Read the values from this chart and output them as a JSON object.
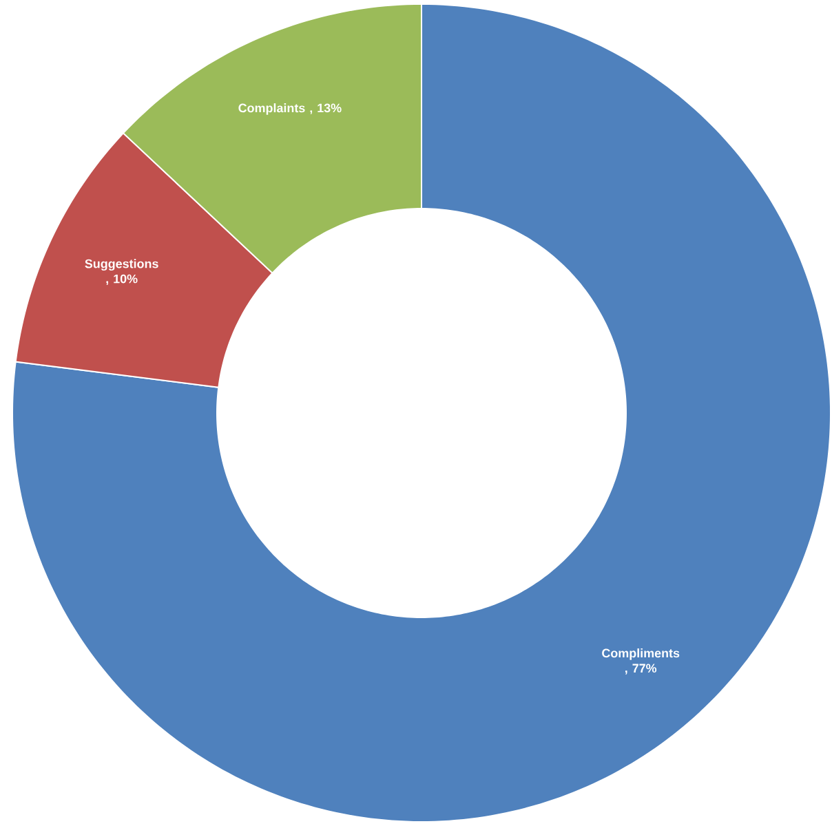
{
  "chart_data": {
    "type": "donut",
    "categories": [
      "Compliments",
      "Suggestions",
      "Complaints"
    ],
    "values": [
      77,
      10,
      13
    ],
    "colors": [
      "#4f81bd",
      "#c0504d",
      "#9bbb59"
    ],
    "value_labels": [
      ", 77%",
      ", 10%",
      ", 13%"
    ]
  }
}
